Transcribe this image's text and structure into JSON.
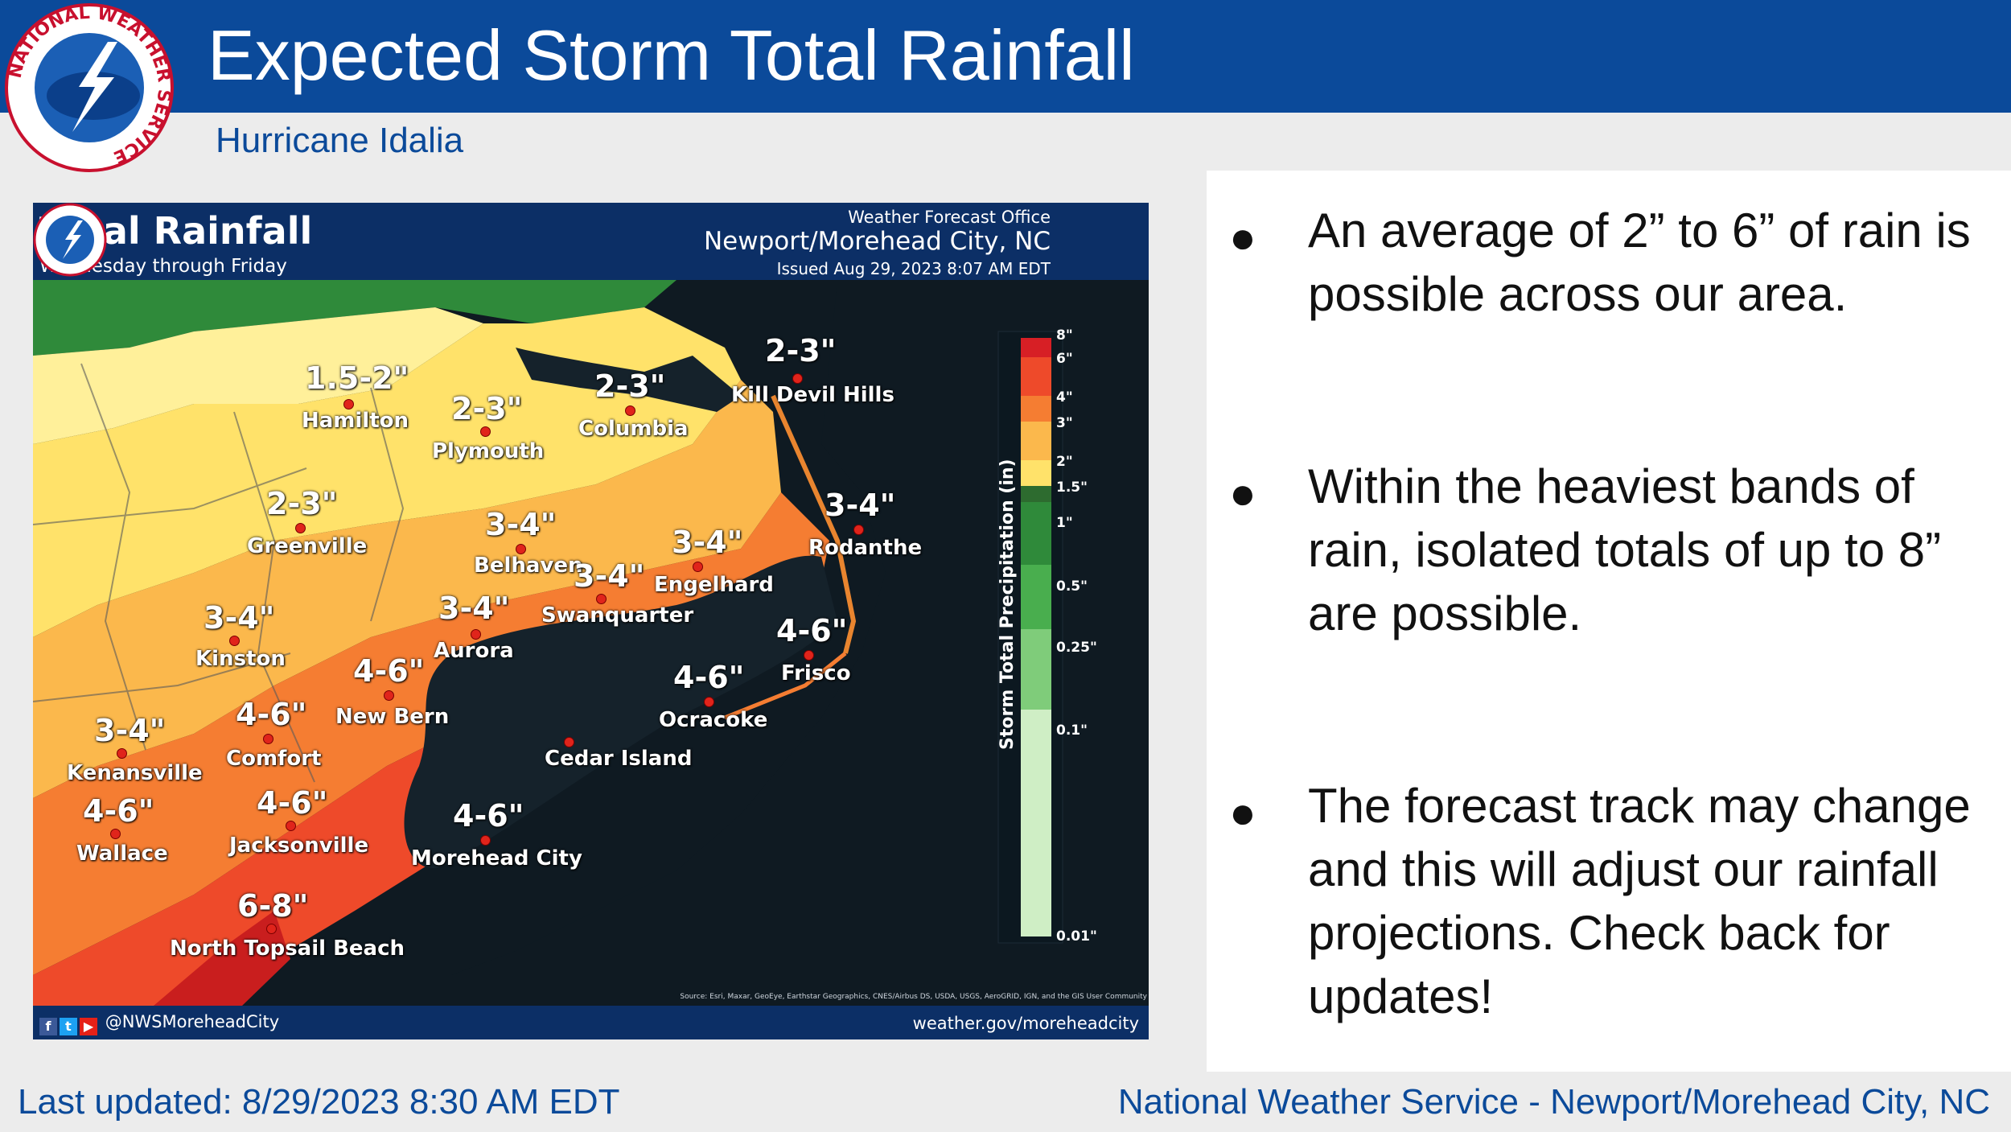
{
  "header": {
    "title": "Expected Storm Total Rainfall",
    "subtitle": "Hurricane Idalia",
    "logo_icon": "nws-logo-icon",
    "logo_text": "NATIONAL WEATHER SERVICE"
  },
  "colors": {
    "header_blue": "#0b4a9a",
    "map_banner": "#0c2f66"
  },
  "map": {
    "title": "Total Rainfall",
    "subtitle": "Wednesday through Friday",
    "office_label": "Weather Forecast Office",
    "office_city": "Newport/Morehead City, NC",
    "issued": "Issued Aug 29, 2023 8:07 AM EDT",
    "social_handle": "@NWSMoreheadCity",
    "website": "weather.gov/moreheadcity",
    "source": "Source: Esri, Maxar, GeoEye, Earthstar Geographics, CNES/Airbus DS, USDA, USGS, AeroGRID, IGN, and the GIS User Community",
    "legend": {
      "title": "Storm Total Precipitation (in)",
      "labels": [
        "8\"",
        "6\"",
        "4\"",
        "3\"",
        "2\"",
        "1.5\"",
        "1\"",
        "0.5\"",
        "0.25\"",
        "0.1\"",
        "0.01\""
      ]
    },
    "locations": [
      {
        "name": "Hamilton",
        "range": "1.5-2\""
      },
      {
        "name": "Plymouth",
        "range": "2-3\""
      },
      {
        "name": "Columbia",
        "range": "2-3\""
      },
      {
        "name": "Kill Devil Hills",
        "range": "2-3\""
      },
      {
        "name": "Greenville",
        "range": "2-3\""
      },
      {
        "name": "Belhaven",
        "range": "3-4\""
      },
      {
        "name": "Engelhard",
        "range": "3-4\""
      },
      {
        "name": "Rodanthe",
        "range": "3-4\""
      },
      {
        "name": "Swanquarter",
        "range": "3-4\""
      },
      {
        "name": "Aurora",
        "range": "3-4\""
      },
      {
        "name": "Kinston",
        "range": "3-4\""
      },
      {
        "name": "New Bern",
        "range": "4-6\""
      },
      {
        "name": "Frisco",
        "range": "4-6\""
      },
      {
        "name": "Ocracoke",
        "range": "4-6\""
      },
      {
        "name": "Kenansville",
        "range": "3-4\""
      },
      {
        "name": "Comfort",
        "range": "4-6\""
      },
      {
        "name": "Cedar Island",
        "range": ""
      },
      {
        "name": "Wallace",
        "range": "4-6\""
      },
      {
        "name": "Jacksonville",
        "range": "4-6\""
      },
      {
        "name": "Morehead City",
        "range": "4-6\""
      },
      {
        "name": "North Topsail Beach",
        "range": "6-8\""
      }
    ]
  },
  "bullets": [
    "An average of 2” to 6” of rain is possible across our area.",
    "Within the heaviest bands of rain, isolated totals of up to 8” are possible.",
    "The forecast track may change and this will adjust our rainfall projections. Check back for updates!"
  ],
  "footer": {
    "last_updated": "Last updated: 8/29/2023 8:30 AM EDT",
    "office": "National Weather Service - Newport/Morehead City, NC"
  }
}
